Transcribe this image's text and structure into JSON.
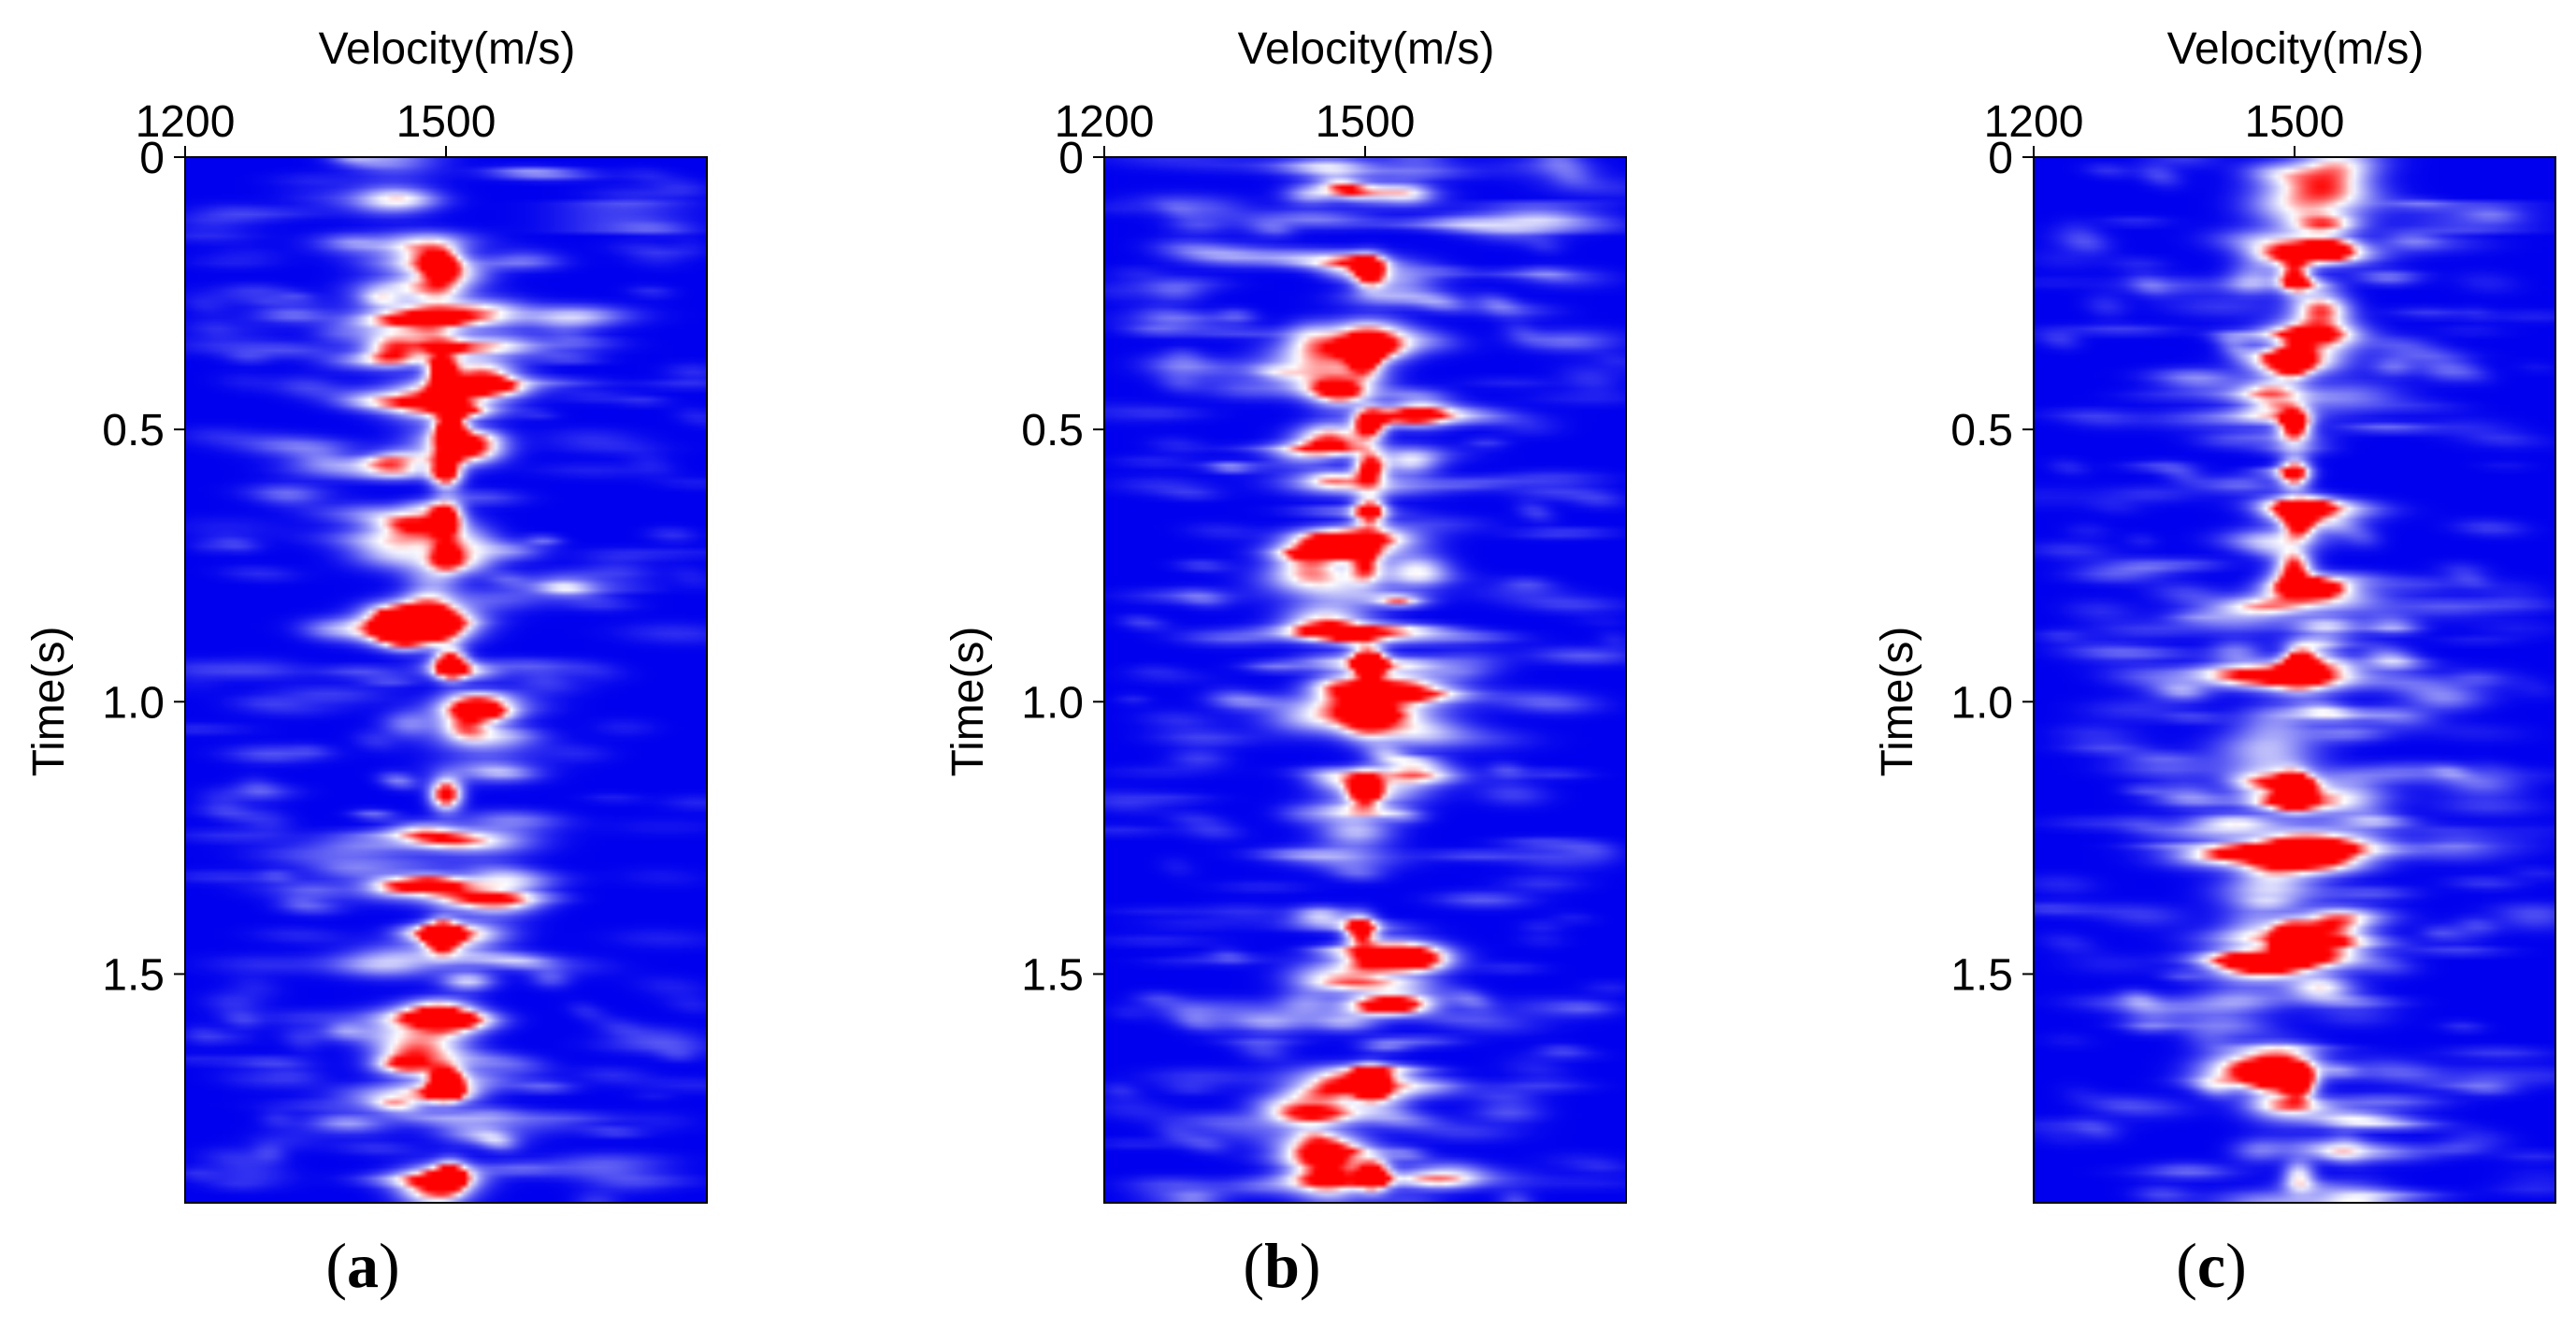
{
  "chart_data": [
    {
      "type": "heatmap",
      "panel_label": "a",
      "xlabel": "Velocity(m/s)",
      "ylabel": "Time(s)",
      "x_ticks": [
        1200,
        1500
      ],
      "x_tick_labels": [
        "1200",
        "1500"
      ],
      "y_ticks": [
        0,
        0.5,
        1.0,
        1.5
      ],
      "y_tick_labels": [
        "0",
        "0.5",
        "1.0",
        "1.5"
      ],
      "xlim": [
        1200,
        1800
      ],
      "ylim": [
        0,
        1.92
      ],
      "x_axis_position": "top",
      "colormap": [
        "#0000ee",
        "#ffffff",
        "#ff0000"
      ],
      "peaks": [
        {
          "time": 0.2,
          "velocity": 1495,
          "strength": 0.55
        },
        {
          "time": 0.39,
          "velocity": 1495,
          "strength": 0.85
        },
        {
          "time": 0.5,
          "velocity": 1505,
          "strength": 1.0
        },
        {
          "time": 0.58,
          "velocity": 1500,
          "strength": 0.95
        },
        {
          "time": 0.66,
          "velocity": 1500,
          "strength": 0.85
        },
        {
          "time": 0.73,
          "velocity": 1500,
          "strength": 0.5
        },
        {
          "time": 0.93,
          "velocity": 1505,
          "strength": 1.0
        },
        {
          "time": 1.17,
          "velocity": 1500,
          "strength": 1.0
        },
        {
          "time": 1.43,
          "velocity": 1495,
          "strength": 1.0
        },
        {
          "time": 1.7,
          "velocity": 1500,
          "strength": 1.0
        },
        {
          "time": 1.87,
          "velocity": 1505,
          "strength": 0.6
        }
      ]
    },
    {
      "type": "heatmap",
      "panel_label": "b",
      "xlabel": "Velocity(m/s)",
      "ylabel": "Time(s)",
      "x_ticks": [
        1200,
        1500
      ],
      "x_tick_labels": [
        "1200",
        "1500"
      ],
      "y_ticks": [
        0,
        0.5,
        1.0,
        1.5
      ],
      "y_tick_labels": [
        "0",
        "0.5",
        "1.0",
        "1.5"
      ],
      "xlim": [
        1200,
        1800
      ],
      "ylim": [
        0,
        1.92
      ],
      "x_axis_position": "top",
      "colormap": [
        "#0000ee",
        "#ffffff",
        "#ff0000"
      ],
      "peaks": [
        {
          "time": 0.21,
          "velocity": 1505,
          "strength": 0.85
        },
        {
          "time": 0.37,
          "velocity": 1500,
          "strength": 0.7
        },
        {
          "time": 0.49,
          "velocity": 1505,
          "strength": 1.0
        },
        {
          "time": 0.57,
          "velocity": 1505,
          "strength": 0.9
        },
        {
          "time": 0.65,
          "velocity": 1505,
          "strength": 0.9
        },
        {
          "time": 0.75,
          "velocity": 1500,
          "strength": 0.6
        },
        {
          "time": 0.93,
          "velocity": 1505,
          "strength": 1.0
        },
        {
          "time": 1.16,
          "velocity": 1500,
          "strength": 1.0
        },
        {
          "time": 1.42,
          "velocity": 1495,
          "strength": 0.9
        },
        {
          "time": 1.7,
          "velocity": 1505,
          "strength": 1.0
        },
        {
          "time": 1.87,
          "velocity": 1510,
          "strength": 0.95
        }
      ]
    },
    {
      "type": "heatmap",
      "panel_label": "c",
      "xlabel": "Velocity(m/s)",
      "ylabel": "Time(s)",
      "x_ticks": [
        1200,
        1500
      ],
      "x_tick_labels": [
        "1200",
        "1500"
      ],
      "y_ticks": [
        0,
        0.5,
        1.0,
        1.5
      ],
      "y_tick_labels": [
        "0",
        "0.5",
        "1.0",
        "1.5"
      ],
      "xlim": [
        1200,
        1800
      ],
      "ylim": [
        0,
        1.92
      ],
      "x_axis_position": "top",
      "colormap": [
        "#0000ee",
        "#ffffff",
        "#ff0000"
      ],
      "peaks": [
        {
          "time": 0.22,
          "velocity": 1500,
          "strength": 0.8
        },
        {
          "time": 0.37,
          "velocity": 1500,
          "strength": 0.6
        },
        {
          "time": 0.49,
          "velocity": 1500,
          "strength": 1.0
        },
        {
          "time": 0.58,
          "velocity": 1500,
          "strength": 0.9
        },
        {
          "time": 0.67,
          "velocity": 1505,
          "strength": 0.85
        },
        {
          "time": 0.75,
          "velocity": 1500,
          "strength": 0.55
        },
        {
          "time": 0.93,
          "velocity": 1505,
          "strength": 1.0
        },
        {
          "time": 1.16,
          "velocity": 1500,
          "strength": 1.0
        },
        {
          "time": 1.44,
          "velocity": 1495,
          "strength": 1.0
        },
        {
          "time": 1.7,
          "velocity": 1505,
          "strength": 1.0
        },
        {
          "time": 1.87,
          "velocity": 1505,
          "strength": 0.55
        }
      ]
    }
  ]
}
